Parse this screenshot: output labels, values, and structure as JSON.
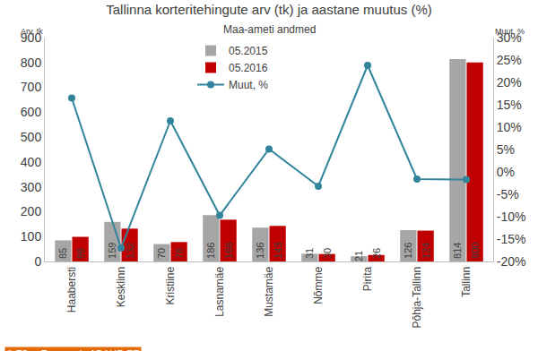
{
  "chart_data": {
    "type": "bar",
    "title": "Tallinna korteritehingute arv (tk) ja aastane muutus (%)",
    "subtitle": "Maa-ameti andmed",
    "y_label": "Arv, tk",
    "y2_label": "Muut, %",
    "annotations": [
      "© Tõnu Toompark, ADAUR.EE"
    ],
    "categories": [
      "Haabersti",
      "Kesklinn",
      "Kristiine",
      "Lasnamäe",
      "Mustamäe",
      "Nõmme",
      "Pirita",
      "Põhja-Tallinn",
      "Tallinn"
    ],
    "series": [
      {
        "name": "05.2015",
        "type": "bar",
        "color": "#a6a6a6",
        "values": [
          85,
          159,
          70,
          186,
          136,
          31,
          21,
          126,
          814
        ],
        "data_labels": true
      },
      {
        "name": "05.2016",
        "type": "bar",
        "color": "#c00000",
        "values": [
          99,
          132,
          78,
          168,
          143,
          30,
          26,
          124,
          800
        ],
        "data_labels": true
      },
      {
        "name": "Muut, %",
        "type": "line",
        "axis": "y2",
        "color": "#31849b",
        "marker": "circle",
        "values": [
          16.5,
          -17.0,
          11.4,
          -9.7,
          5.1,
          -3.2,
          23.8,
          -1.6,
          -1.7
        ]
      }
    ],
    "ylim": [
      0,
      900
    ],
    "yticks": [
      0,
      100,
      200,
      300,
      400,
      500,
      600,
      700,
      800,
      900
    ],
    "y2lim": [
      -20,
      30
    ],
    "y2ticks": [
      {
        "value": -20,
        "label": "-20%"
      },
      {
        "value": -15,
        "label": "-15%"
      },
      {
        "value": -10,
        "label": "-10%"
      },
      {
        "value": -5,
        "label": "-5%"
      },
      {
        "value": 0,
        "label": "0%"
      },
      {
        "value": 5,
        "label": "5%"
      },
      {
        "value": 10,
        "label": "10%"
      },
      {
        "value": 15,
        "label": "15%"
      },
      {
        "value": 20,
        "label": "20%"
      },
      {
        "value": 25,
        "label": "25%"
      },
      {
        "value": 30,
        "label": "30%"
      }
    ],
    "grid": false,
    "legend": "upper center"
  }
}
